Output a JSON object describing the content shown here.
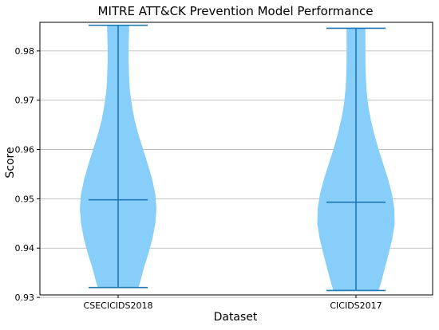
{
  "chart_data": {
    "type": "violin",
    "title": "MITRE ATT&CK Prevention Model Performance",
    "xlabel": "Dataset",
    "ylabel": "Score",
    "categories": [
      "CSECICIDS2018",
      "CICIDS2017"
    ],
    "ylim": [
      0.9305,
      0.9858
    ],
    "yticks": [
      0.93,
      0.94,
      0.95,
      0.96,
      0.97,
      0.98
    ],
    "ytick_labels": [
      "0.93",
      "0.94",
      "0.95",
      "0.96",
      "0.97",
      "0.98"
    ],
    "grid": "horizontal",
    "violins": [
      {
        "category": "CSECICIDS2018",
        "min": 0.932,
        "max": 0.9852,
        "median": 0.9498,
        "density": [
          [
            0.932,
            0.52
          ],
          [
            0.933,
            0.56
          ],
          [
            0.936,
            0.66
          ],
          [
            0.939,
            0.78
          ],
          [
            0.942,
            0.88
          ],
          [
            0.945,
            0.95
          ],
          [
            0.948,
            0.98
          ],
          [
            0.951,
            0.95
          ],
          [
            0.954,
            0.87
          ],
          [
            0.957,
            0.76
          ],
          [
            0.96,
            0.64
          ],
          [
            0.963,
            0.52
          ],
          [
            0.966,
            0.42
          ],
          [
            0.969,
            0.35
          ],
          [
            0.972,
            0.3
          ],
          [
            0.975,
            0.28
          ],
          [
            0.978,
            0.27
          ],
          [
            0.981,
            0.27
          ],
          [
            0.984,
            0.28
          ],
          [
            0.9852,
            0.28
          ]
        ]
      },
      {
        "category": "CICIDS2017",
        "min": 0.9314,
        "max": 0.9846,
        "median": 0.9493,
        "density": [
          [
            0.9314,
            0.58
          ],
          [
            0.933,
            0.64
          ],
          [
            0.936,
            0.74
          ],
          [
            0.939,
            0.84
          ],
          [
            0.942,
            0.93
          ],
          [
            0.945,
            0.99
          ],
          [
            0.948,
            0.98
          ],
          [
            0.951,
            0.92
          ],
          [
            0.954,
            0.82
          ],
          [
            0.957,
            0.7
          ],
          [
            0.96,
            0.58
          ],
          [
            0.963,
            0.47
          ],
          [
            0.966,
            0.38
          ],
          [
            0.969,
            0.31
          ],
          [
            0.972,
            0.27
          ],
          [
            0.975,
            0.25
          ],
          [
            0.978,
            0.24
          ],
          [
            0.981,
            0.24
          ],
          [
            0.984,
            0.24
          ],
          [
            0.9846,
            0.24
          ]
        ]
      }
    ],
    "colors": {
      "body": "#87cefa",
      "lines": "#1f77b4",
      "grid": "#b0b0b0",
      "axes": "#000000"
    }
  }
}
